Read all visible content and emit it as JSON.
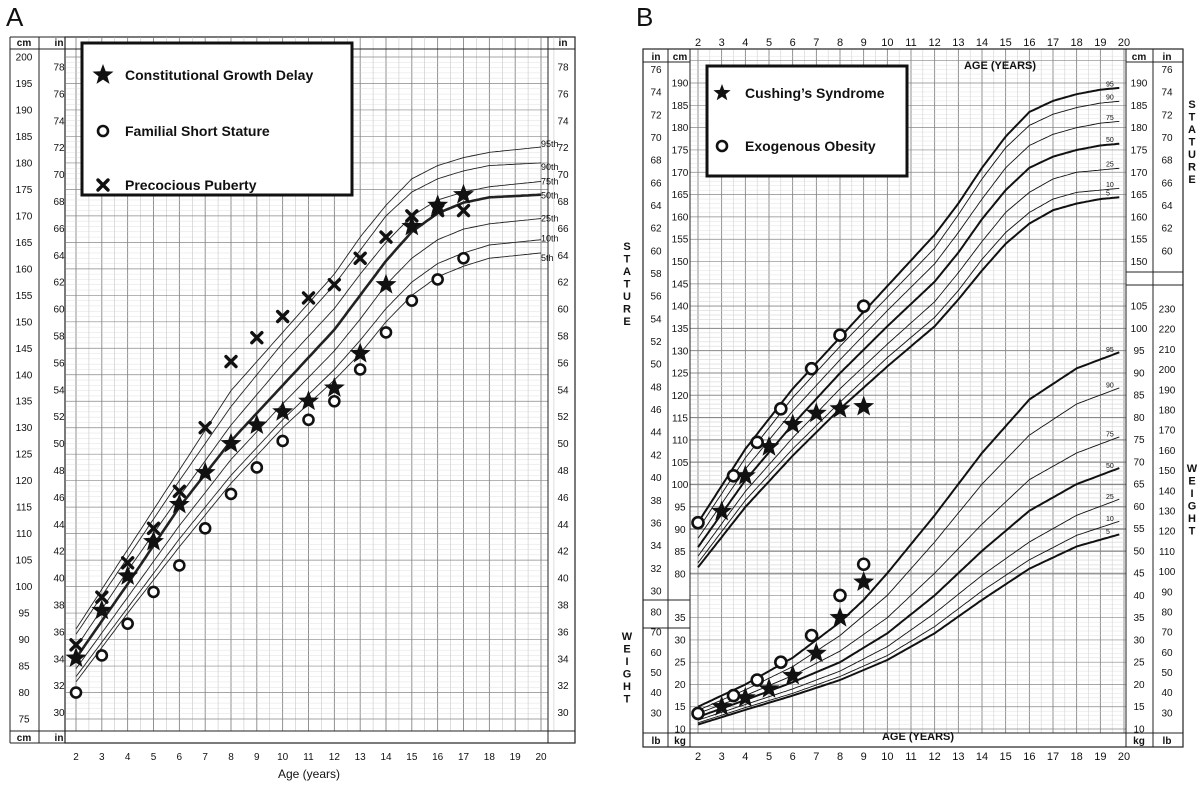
{
  "chart_data": [
    {
      "panel_label": "A",
      "type": "scatter",
      "xlabel": "Age (years)",
      "x_ticks": [
        "2",
        "3",
        "4",
        "5",
        "6",
        "7",
        "8",
        "9",
        "10",
        "11",
        "12",
        "13",
        "14",
        "15",
        "16",
        "17",
        "18",
        "19",
        "20"
      ],
      "xlim": [
        2,
        20
      ],
      "ylim_cm": [
        75,
        200
      ],
      "ylim_in": [
        30,
        79
      ],
      "left_unit_top": "cm",
      "right_unit_top": "in",
      "inner_unit_top": "in",
      "right_inner_unit_top": "in",
      "bottom_unit_left": "cm",
      "bottom_unit_inner": "in",
      "percentiles": [
        "95th",
        "90th",
        "75th",
        "50th",
        "25th",
        "10th",
        "5th"
      ],
      "legend": [
        {
          "marker": "star",
          "label": "Constitutional Growth Delay"
        },
        {
          "marker": "circle",
          "label": "Familial Short Stature"
        },
        {
          "marker": "x",
          "label": "Precocious Puberty"
        }
      ],
      "series": [
        {
          "name": "Constitutional Growth Delay",
          "marker": "star",
          "x": [
            2,
            3,
            4,
            5,
            6,
            7,
            8,
            9,
            10,
            11,
            12,
            13,
            14,
            15,
            16,
            17
          ],
          "y_cm": [
            86.5,
            95.5,
            102,
            108.5,
            115.5,
            121.5,
            127,
            130.5,
            133,
            135,
            137.5,
            144,
            157,
            168,
            172,
            174
          ]
        },
        {
          "name": "Familial Short Stature",
          "marker": "circle",
          "x": [
            2,
            3,
            4,
            5,
            6,
            7,
            8,
            9,
            10,
            11,
            12,
            13,
            14,
            15,
            16,
            17
          ],
          "y_cm": [
            80,
            87,
            93,
            99,
            104,
            111,
            117.5,
            122.5,
            127.5,
            131.5,
            135,
            141,
            148,
            154,
            158,
            162
          ]
        },
        {
          "name": "Precocious Puberty",
          "marker": "x",
          "x": [
            2,
            3,
            4,
            5,
            6,
            7,
            8,
            9,
            10,
            11,
            12,
            13,
            14,
            15,
            16,
            17
          ],
          "y_cm": [
            89,
            98,
            104.5,
            111,
            118,
            130,
            142.5,
            147,
            151,
            154.5,
            157,
            162,
            166,
            170,
            171,
            171
          ]
        }
      ]
    },
    {
      "panel_label": "B",
      "type": "scatter",
      "xlabel_top": "AGE (YEARS)",
      "xlabel_bottom": "AGE (YEARS)",
      "x_ticks": [
        "2",
        "3",
        "4",
        "5",
        "6",
        "7",
        "8",
        "9",
        "10",
        "11",
        "12",
        "13",
        "14",
        "15",
        "16",
        "17",
        "18",
        "19",
        "20"
      ],
      "xlim": [
        2,
        20
      ],
      "stature_label": "STATURE",
      "weight_label": "WEIGHT",
      "stature_ylim_cm": [
        77,
        200
      ],
      "weight_ylim_kg": [
        5,
        105
      ],
      "stature_cm_ticks": [
        "80",
        "85",
        "90",
        "95",
        "100",
        "105",
        "110",
        "115",
        "120",
        "125",
        "130",
        "135",
        "140",
        "145",
        "150",
        "155",
        "160",
        "165",
        "170",
        "175",
        "180",
        "185",
        "190"
      ],
      "stature_in_ticks": [
        "30",
        "32",
        "34",
        "36",
        "38",
        "40",
        "42",
        "44",
        "46",
        "48",
        "50",
        "52",
        "54",
        "56",
        "58",
        "60",
        "62",
        "64",
        "66",
        "68",
        "70",
        "72",
        "74",
        "76"
      ],
      "right_in_ticks": [
        "60",
        "62",
        "64",
        "66",
        "68",
        "70",
        "72",
        "74",
        "76"
      ],
      "right_cm_ticks": [
        "150",
        "155",
        "160",
        "165",
        "170",
        "175",
        "180",
        "185",
        "190"
      ],
      "weight_kg_ticks": [
        "10",
        "15",
        "20",
        "25",
        "30",
        "35",
        "40",
        "45",
        "50",
        "55",
        "60",
        "65",
        "70",
        "75",
        "80",
        "85",
        "90",
        "95",
        "100",
        "105"
      ],
      "weight_lb_ticks": [
        "30",
        "40",
        "50",
        "60",
        "70",
        "80"
      ],
      "right_lb_ticks": [
        "30",
        "40",
        "50",
        "60",
        "70",
        "80",
        "90",
        "100",
        "110",
        "120",
        "130",
        "140",
        "150",
        "160",
        "170",
        "180",
        "190",
        "200",
        "210",
        "220",
        "230"
      ],
      "units": {
        "in": "in",
        "cm": "cm",
        "lb": "lb",
        "kg": "kg"
      },
      "percentiles": [
        "95",
        "90",
        "75",
        "50",
        "25",
        "10",
        "5"
      ],
      "legend": [
        {
          "marker": "star",
          "label": "Cushing’s Syndrome"
        },
        {
          "marker": "circle",
          "label": "Exogenous Obesity"
        }
      ],
      "series": [
        {
          "name": "Cushing’s Syndrome",
          "quantity": "stature",
          "marker": "star",
          "x": [
            3,
            4,
            5,
            6,
            7,
            8,
            9
          ],
          "y_cm": [
            94,
            102,
            108.5,
            113.5,
            116,
            117,
            117.5
          ]
        },
        {
          "name": "Exogenous Obesity",
          "quantity": "stature",
          "marker": "circle",
          "x": [
            2,
            3.5,
            4.5,
            5.5,
            6.8,
            8,
            9
          ],
          "y_cm": [
            91.5,
            102,
            109.5,
            117,
            126,
            133.5,
            140
          ]
        },
        {
          "name": "Cushing’s Syndrome",
          "quantity": "weight",
          "marker": "star",
          "x": [
            3,
            4,
            5,
            6,
            7,
            8,
            9
          ],
          "y_kg": [
            15,
            17,
            19,
            22,
            27,
            35,
            43
          ]
        },
        {
          "name": "Exogenous Obesity",
          "quantity": "weight",
          "marker": "circle",
          "x": [
            2,
            3.5,
            4.5,
            5.5,
            6.8,
            8,
            9
          ],
          "y_kg": [
            13.5,
            17.5,
            21,
            25,
            31,
            40,
            47
          ]
        }
      ]
    }
  ]
}
